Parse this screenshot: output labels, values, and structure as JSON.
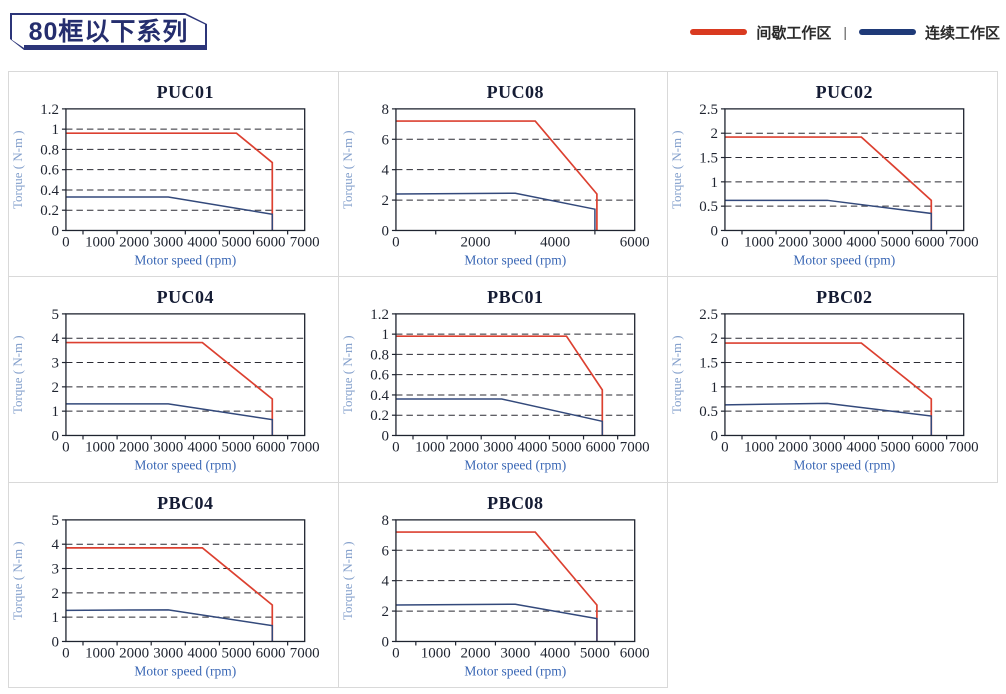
{
  "header": {
    "title": "80框以下系列"
  },
  "legend": {
    "intermittent_label": "间歇工作区",
    "continuous_label": "连续工作区",
    "separator": "|"
  },
  "colors": {
    "intermittent-line": "#dc4030",
    "continuous-line": "#33497b",
    "legend-intermittent": "#d93a20",
    "legend-continuous": "#1f3a78",
    "legend-text": "#2b2b2b",
    "grid-line": "#2b2b33",
    "axis-frame": "#1f2430",
    "tick-text": "#1f2430",
    "title-text": "#151c34",
    "xlabel-text": "#3a67b5",
    "ylabel-text": "#84a0cc",
    "cell-border": "#d9d9d9",
    "tag-border": "#2c3579",
    "tag-text": "#252e6e"
  },
  "chart_data": [
    {
      "type": "line",
      "title": "PUC01",
      "xlabel": "Motor speed (rpm)",
      "ylabel": "Torque ( N-m )",
      "xlim": [
        0,
        7000
      ],
      "xticks": [
        0,
        1000,
        2000,
        3000,
        4000,
        5000,
        6000,
        7000
      ],
      "xtick_labels": [
        "0",
        "1000",
        "2000",
        "3000",
        "4000",
        "5000",
        "6000",
        "7000"
      ],
      "ylim": [
        0,
        1.2
      ],
      "yticks": [
        0,
        0.2,
        0.4,
        0.6,
        0.8,
        1,
        1.2
      ],
      "ytick_labels": [
        "0",
        "0.2",
        "0.4",
        "0.6",
        "0.8",
        "1",
        "1.2"
      ],
      "series": [
        {
          "name": "间歇工作区",
          "zone": "intermittent",
          "points": [
            [
              0,
              0.96
            ],
            [
              5000,
              0.96
            ],
            [
              6050,
              0.67
            ],
            [
              6050,
              0
            ]
          ]
        },
        {
          "name": "连续工作区",
          "zone": "continuous",
          "points": [
            [
              0,
              0.33
            ],
            [
              3000,
              0.33
            ],
            [
              6050,
              0.16
            ],
            [
              6050,
              0
            ]
          ]
        }
      ]
    },
    {
      "type": "line",
      "title": "PUC08",
      "xlabel": "Motor speed (rpm)",
      "ylabel": "Torque ( N-m )",
      "xlim": [
        0,
        6000
      ],
      "xticks": [
        0,
        2000,
        4000,
        6000
      ],
      "xtick_labels": [
        "0",
        "2000",
        "4000",
        "6000"
      ],
      "ylim": [
        0,
        8
      ],
      "yticks": [
        0,
        2,
        4,
        6,
        8
      ],
      "ytick_labels": [
        "0",
        "2",
        "4",
        "6",
        "8"
      ],
      "series": [
        {
          "name": "间歇工作区",
          "zone": "intermittent",
          "points": [
            [
              0,
              7.2
            ],
            [
              3500,
              7.2
            ],
            [
              5050,
              2.4
            ],
            [
              5050,
              0
            ]
          ]
        },
        {
          "name": "连续工作区",
          "zone": "continuous",
          "points": [
            [
              0,
              2.4
            ],
            [
              3000,
              2.45
            ],
            [
              5000,
              1.4
            ],
            [
              5000,
              0
            ]
          ]
        }
      ]
    },
    {
      "type": "line",
      "title": "PUC02",
      "xlabel": "Motor speed (rpm)",
      "ylabel": "Torque ( N-m )",
      "xlim": [
        0,
        7000
      ],
      "xticks": [
        0,
        1000,
        2000,
        3000,
        4000,
        5000,
        6000,
        7000
      ],
      "xtick_labels": [
        "0",
        "1000",
        "2000",
        "3000",
        "4000",
        "5000",
        "6000",
        "7000"
      ],
      "ylim": [
        0,
        2.5
      ],
      "yticks": [
        0,
        0.5,
        1,
        1.5,
        2,
        2.5
      ],
      "ytick_labels": [
        "0",
        "0.5",
        "1",
        "1.5",
        "2",
        "2.5"
      ],
      "series": [
        {
          "name": "间歇工作区",
          "zone": "intermittent",
          "points": [
            [
              0,
              1.92
            ],
            [
              4000,
              1.92
            ],
            [
              6050,
              0.62
            ],
            [
              6050,
              0
            ]
          ]
        },
        {
          "name": "连续工作区",
          "zone": "continuous",
          "points": [
            [
              0,
              0.62
            ],
            [
              3000,
              0.62
            ],
            [
              6050,
              0.35
            ],
            [
              6050,
              0
            ]
          ]
        }
      ]
    },
    {
      "type": "line",
      "title": "PUC04",
      "xlabel": "Motor speed (rpm)",
      "ylabel": "Torque ( N-m )",
      "xlim": [
        0,
        7000
      ],
      "xticks": [
        0,
        1000,
        2000,
        3000,
        4000,
        5000,
        6000,
        7000
      ],
      "xtick_labels": [
        "0",
        "1000",
        "2000",
        "3000",
        "4000",
        "5000",
        "6000",
        "7000"
      ],
      "ylim": [
        0,
        5
      ],
      "yticks": [
        0,
        1,
        2,
        3,
        4,
        5
      ],
      "ytick_labels": [
        "0",
        "1",
        "2",
        "3",
        "4",
        "5"
      ],
      "series": [
        {
          "name": "间歇工作区",
          "zone": "intermittent",
          "points": [
            [
              0,
              3.82
            ],
            [
              4000,
              3.82
            ],
            [
              6050,
              1.5
            ],
            [
              6050,
              0
            ]
          ]
        },
        {
          "name": "连续工作区",
          "zone": "continuous",
          "points": [
            [
              0,
              1.3
            ],
            [
              3000,
              1.3
            ],
            [
              6050,
              0.65
            ],
            [
              6050,
              0
            ]
          ]
        }
      ]
    },
    {
      "type": "line",
      "title": "PBC01",
      "xlabel": "Motor speed (rpm)",
      "ylabel": "Torque ( N-m )",
      "xlim": [
        0,
        7000
      ],
      "xticks": [
        0,
        1000,
        2000,
        3000,
        4000,
        5000,
        6000,
        7000
      ],
      "xtick_labels": [
        "0",
        "1000",
        "2000",
        "3000",
        "4000",
        "5000",
        "6000",
        "7000"
      ],
      "ylim": [
        0,
        1.2
      ],
      "yticks": [
        0,
        0.2,
        0.4,
        0.6,
        0.8,
        1,
        1.2
      ],
      "ytick_labels": [
        "0",
        "0.2",
        "0.4",
        "0.6",
        "0.8",
        "1",
        "1.2"
      ],
      "series": [
        {
          "name": "间歇工作区",
          "zone": "intermittent",
          "points": [
            [
              0,
              0.98
            ],
            [
              5000,
              0.98
            ],
            [
              6050,
              0.45
            ],
            [
              6050,
              0
            ]
          ]
        },
        {
          "name": "连续工作区",
          "zone": "continuous",
          "points": [
            [
              0,
              0.36
            ],
            [
              3100,
              0.36
            ],
            [
              6050,
              0.14
            ],
            [
              6050,
              0
            ]
          ]
        }
      ]
    },
    {
      "type": "line",
      "title": "PBC02",
      "xlabel": "Motor speed (rpm)",
      "ylabel": "Torque ( N-m )",
      "xlim": [
        0,
        7000
      ],
      "xticks": [
        0,
        1000,
        2000,
        3000,
        4000,
        5000,
        6000,
        7000
      ],
      "xtick_labels": [
        "0",
        "1000",
        "2000",
        "3000",
        "4000",
        "5000",
        "6000",
        "7000"
      ],
      "ylim": [
        0,
        2.5
      ],
      "yticks": [
        0,
        0.5,
        1,
        1.5,
        2,
        2.5
      ],
      "ytick_labels": [
        "0",
        "0.5",
        "1",
        "1.5",
        "2",
        "2.5"
      ],
      "series": [
        {
          "name": "间歇工作区",
          "zone": "intermittent",
          "points": [
            [
              0,
              1.9
            ],
            [
              4000,
              1.9
            ],
            [
              6050,
              0.75
            ],
            [
              6050,
              0
            ]
          ]
        },
        {
          "name": "连续工作区",
          "zone": "continuous",
          "points": [
            [
              0,
              0.63
            ],
            [
              3000,
              0.66
            ],
            [
              6050,
              0.4
            ],
            [
              6050,
              0
            ]
          ]
        }
      ]
    },
    {
      "type": "line",
      "title": "PBC04",
      "xlabel": "Motor speed (rpm)",
      "ylabel": "Torque ( N-m )",
      "xlim": [
        0,
        7000
      ],
      "xticks": [
        0,
        1000,
        2000,
        3000,
        4000,
        5000,
        6000,
        7000
      ],
      "xtick_labels": [
        "0",
        "1000",
        "2000",
        "3000",
        "4000",
        "5000",
        "6000",
        "7000"
      ],
      "ylim": [
        0,
        5
      ],
      "yticks": [
        0,
        1,
        2,
        3,
        4,
        5
      ],
      "ytick_labels": [
        "0",
        "1",
        "2",
        "3",
        "4",
        "5"
      ],
      "series": [
        {
          "name": "间歇工作区",
          "zone": "intermittent",
          "points": [
            [
              0,
              3.85
            ],
            [
              4000,
              3.85
            ],
            [
              6050,
              1.5
            ],
            [
              6050,
              0
            ]
          ]
        },
        {
          "name": "连续工作区",
          "zone": "continuous",
          "points": [
            [
              0,
              1.28
            ],
            [
              3000,
              1.3
            ],
            [
              6050,
              0.65
            ],
            [
              6050,
              0
            ]
          ]
        }
      ]
    },
    {
      "type": "line",
      "title": "PBC08",
      "xlabel": "Motor speed (rpm)",
      "ylabel": "Torque ( N-m )",
      "xlim": [
        0,
        6000
      ],
      "xticks": [
        0,
        1000,
        2000,
        3000,
        4000,
        5000,
        6000
      ],
      "xtick_labels": [
        "0",
        "1000",
        "2000",
        "3000",
        "4000",
        "5000",
        "6000"
      ],
      "ylim": [
        0,
        8
      ],
      "yticks": [
        0,
        2,
        4,
        6,
        8
      ],
      "ytick_labels": [
        "0",
        "2",
        "4",
        "6",
        "8"
      ],
      "series": [
        {
          "name": "间歇工作区",
          "zone": "intermittent",
          "points": [
            [
              0,
              7.2
            ],
            [
              3500,
              7.2
            ],
            [
              5050,
              2.4
            ],
            [
              5050,
              0
            ]
          ]
        },
        {
          "name": "连续工作区",
          "zone": "continuous",
          "points": [
            [
              0,
              2.4
            ],
            [
              3000,
              2.45
            ],
            [
              5050,
              1.5
            ],
            [
              5050,
              0
            ]
          ]
        }
      ]
    }
  ]
}
